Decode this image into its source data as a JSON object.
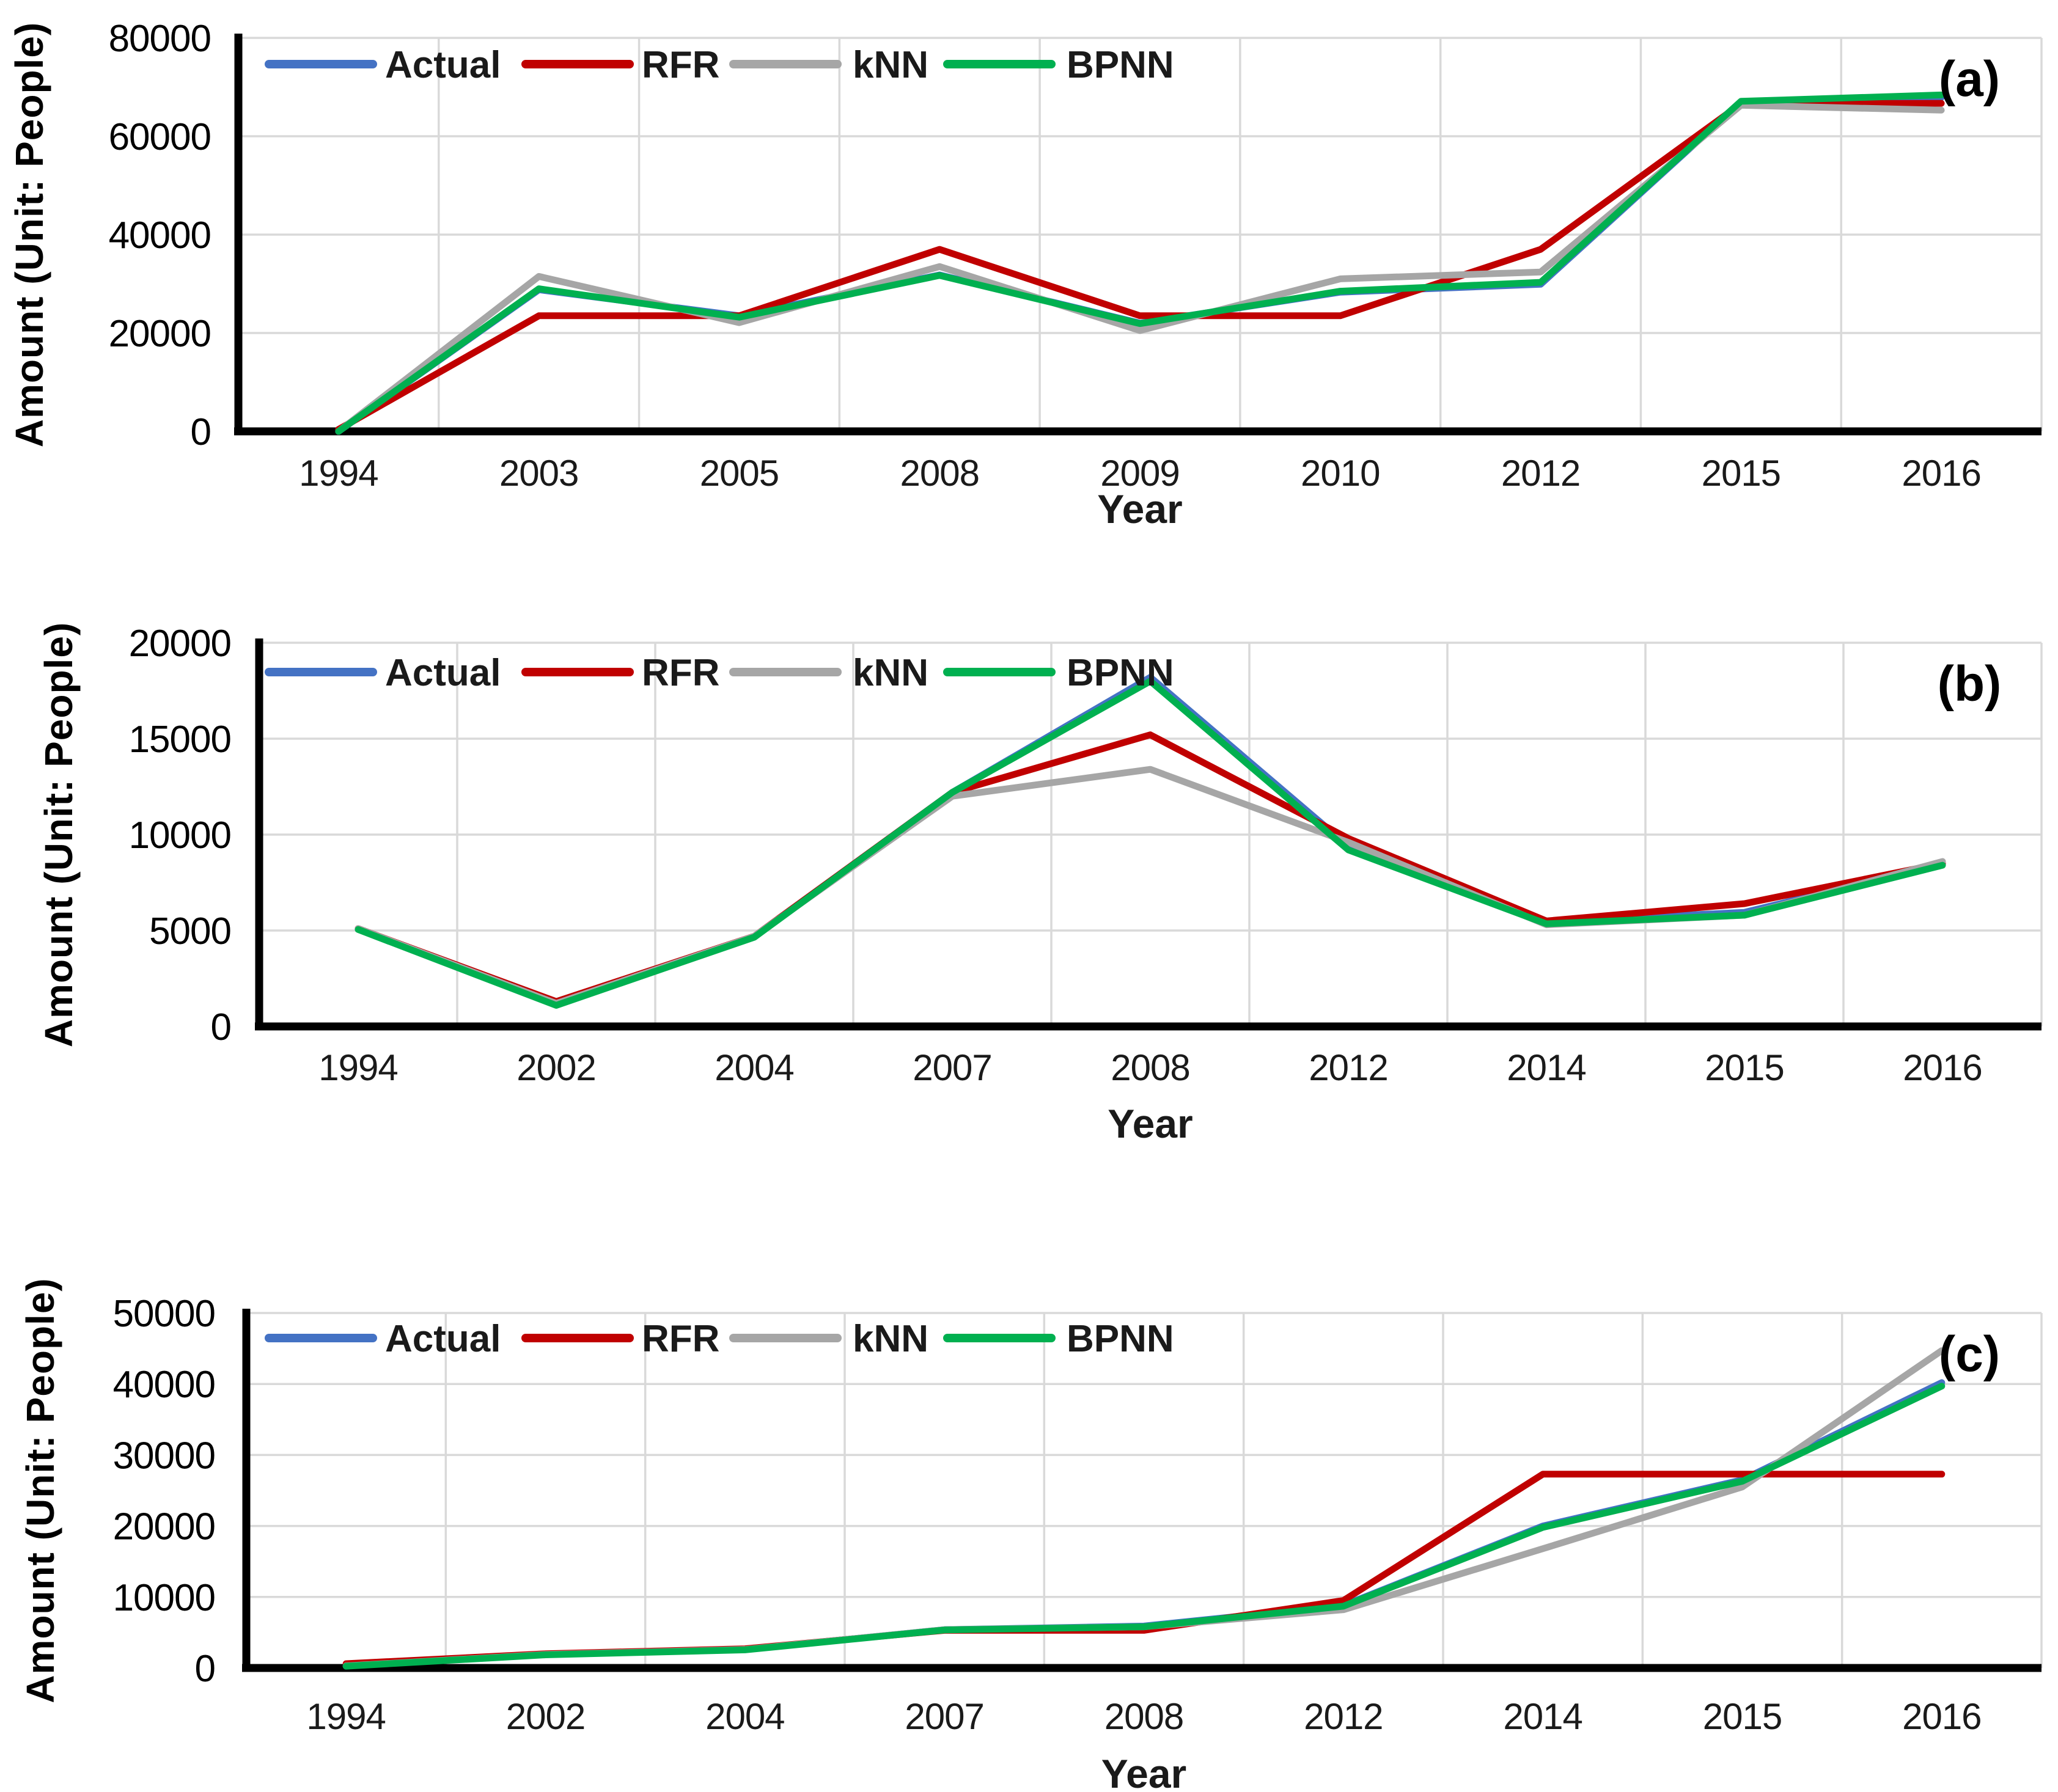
{
  "figure": {
    "background": "#ffffff",
    "x_axis_title": "Year",
    "y_axis_title": "Amount (Unit: People)",
    "grid_color": "#D9D9D9",
    "axis_color": "#000000",
    "legend_items": [
      "Actual",
      "RFR",
      "kNN",
      "BPNN"
    ]
  },
  "chart_data": [
    {
      "type": "line",
      "panel_label": "(a)",
      "xlabel": "Year",
      "ylabel": "Amount (Unit: People)",
      "categories": [
        "1994",
        "2003",
        "2005",
        "2008",
        "2009",
        "2010",
        "2012",
        "2015",
        "2016"
      ],
      "ylim": [
        0,
        80000
      ],
      "ytick_step": 20000,
      "grid": true,
      "legend_position": "top-left",
      "series": [
        {
          "name": "Actual",
          "color": "#4472C4",
          "values": [
            0,
            28800,
            23500,
            31800,
            22000,
            28300,
            29900,
            67000,
            67900
          ]
        },
        {
          "name": "RFR",
          "color": "#C00000",
          "values": [
            400,
            23500,
            23500,
            37000,
            23500,
            23500,
            37000,
            66600,
            66700
          ]
        },
        {
          "name": "kNN",
          "color": "#A6A6A6",
          "values": [
            0,
            31500,
            22100,
            33500,
            20500,
            31000,
            32400,
            66300,
            65300
          ]
        },
        {
          "name": "BPNN",
          "color": "#00B050",
          "values": [
            0,
            29000,
            23200,
            31700,
            21900,
            28500,
            30300,
            67100,
            68400
          ]
        }
      ]
    },
    {
      "type": "line",
      "panel_label": "(b)",
      "xlabel": "Year",
      "ylabel": "Amount (Unit: People)",
      "categories": [
        "1994",
        "2002",
        "2004",
        "2007",
        "2008",
        "2012",
        "2014",
        "2015",
        "2016"
      ],
      "ylim": [
        0,
        20000
      ],
      "ytick_step": 5000,
      "grid": true,
      "legend_position": "top-left",
      "series": [
        {
          "name": "Actual",
          "color": "#4472C4",
          "values": [
            5100,
            1200,
            4700,
            12200,
            18200,
            9400,
            5450,
            5950,
            8450
          ]
        },
        {
          "name": "RFR",
          "color": "#C00000",
          "values": [
            5100,
            1300,
            4700,
            12200,
            15200,
            9800,
            5500,
            6400,
            8500
          ]
        },
        {
          "name": "kNN",
          "color": "#A6A6A6",
          "values": [
            5100,
            1200,
            4700,
            12000,
            13400,
            9600,
            5300,
            5800,
            8600
          ]
        },
        {
          "name": "BPNN",
          "color": "#00B050",
          "values": [
            5050,
            1100,
            4650,
            12200,
            18000,
            9200,
            5350,
            5800,
            8400
          ]
        }
      ]
    },
    {
      "type": "line",
      "panel_label": "(c)",
      "xlabel": "Year",
      "ylabel": "Amount (Unit: People)",
      "categories": [
        "1994",
        "2002",
        "2004",
        "2007",
        "2008",
        "2012",
        "2014",
        "2015",
        "2016"
      ],
      "ylim": [
        0,
        50000
      ],
      "ytick_step": 10000,
      "grid": true,
      "legend_position": "top-left",
      "series": [
        {
          "name": "Actual",
          "color": "#4472C4",
          "values": [
            300,
            1900,
            2600,
            5400,
            5900,
            8800,
            20000,
            26500,
            40200
          ]
        },
        {
          "name": "RFR",
          "color": "#C00000",
          "values": [
            600,
            2000,
            2700,
            5300,
            5300,
            9500,
            27300,
            27300,
            27300
          ]
        },
        {
          "name": "kNN",
          "color": "#A6A6A6",
          "values": [
            300,
            1900,
            2600,
            5400,
            5800,
            8200,
            16800,
            25500,
            44700
          ]
        },
        {
          "name": "BPNN",
          "color": "#00B050",
          "values": [
            250,
            1850,
            2550,
            5350,
            5800,
            8700,
            19800,
            26300,
            39700
          ]
        }
      ]
    }
  ]
}
